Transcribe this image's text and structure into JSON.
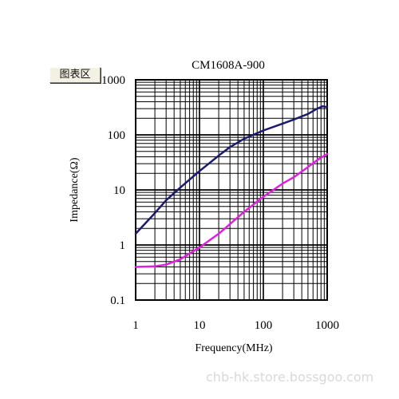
{
  "toolbar": {
    "button_label": "图表区"
  },
  "watermark": "chb-hk.store.bossgoo.com",
  "chart_data": {
    "type": "line",
    "title": "CM1608A-900",
    "xlabel": "Frequency(MHz)",
    "ylabel": "Impedance(Ω)",
    "x_scale": "log",
    "y_scale": "log",
    "xlim": [
      1,
      1000
    ],
    "ylim": [
      0.1,
      1000
    ],
    "x_ticks": [
      "1",
      "10",
      "100",
      "1000"
    ],
    "y_ticks": [
      "0.1",
      "1",
      "10",
      "100",
      "1000"
    ],
    "grid": true,
    "series": [
      {
        "color": "#1a1a6e",
        "points": [
          [
            1,
            1.6
          ],
          [
            2,
            3.8
          ],
          [
            3,
            6.5
          ],
          [
            5,
            11
          ],
          [
            10,
            22
          ],
          [
            20,
            42
          ],
          [
            30,
            60
          ],
          [
            50,
            85
          ],
          [
            100,
            120
          ],
          [
            200,
            160
          ],
          [
            300,
            190
          ],
          [
            500,
            240
          ],
          [
            700,
            300
          ],
          [
            850,
            330
          ],
          [
            1000,
            320
          ]
        ]
      },
      {
        "color": "#e020e0",
        "points": [
          [
            1,
            0.4
          ],
          [
            2,
            0.41
          ],
          [
            3,
            0.44
          ],
          [
            5,
            0.55
          ],
          [
            7,
            0.7
          ],
          [
            10,
            0.9
          ],
          [
            20,
            1.6
          ],
          [
            30,
            2.4
          ],
          [
            50,
            4
          ],
          [
            100,
            7.5
          ],
          [
            200,
            13
          ],
          [
            300,
            17
          ],
          [
            500,
            26
          ],
          [
            700,
            35
          ],
          [
            1000,
            45
          ]
        ]
      }
    ]
  }
}
